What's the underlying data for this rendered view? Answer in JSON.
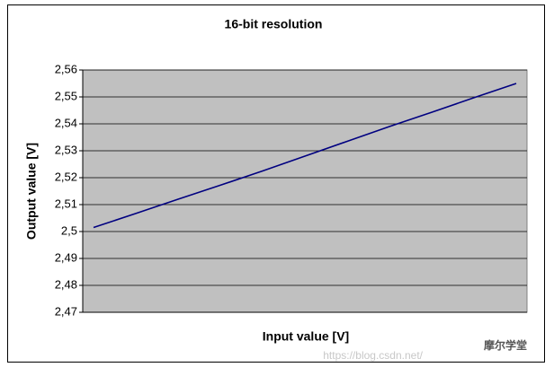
{
  "chart_data": {
    "type": "line",
    "title": "16-bit resolution",
    "x_label": "Input value [V]",
    "y_label": "Output value [V]",
    "categories": [
      null,
      null,
      null,
      null,
      null,
      null,
      null,
      null,
      null,
      null,
      null
    ],
    "series": [
      {
        "color": "#000080",
        "values": [
          2.5015,
          2.5067,
          2.512,
          2.5172,
          2.5225,
          2.528,
          2.5335,
          2.539,
          2.5443,
          2.5497,
          2.555
        ]
      }
    ],
    "ylim": [
      2.47,
      2.56
    ],
    "yticks": [
      {
        "value": 2.47,
        "label": "2,47"
      },
      {
        "value": 2.48,
        "label": "2,48"
      },
      {
        "value": 2.49,
        "label": "2,49"
      },
      {
        "value": 2.5,
        "label": "2,5"
      },
      {
        "value": 2.51,
        "label": "2,51"
      },
      {
        "value": 2.52,
        "label": "2,52"
      },
      {
        "value": 2.53,
        "label": "2,53"
      },
      {
        "value": 2.54,
        "label": "2,54"
      },
      {
        "value": 2.55,
        "label": "2,55"
      },
      {
        "value": 2.56,
        "label": "2,56"
      }
    ],
    "grid": true,
    "plot_background": "#c0c0c0"
  },
  "watermark": {
    "url": "https://blog.csdn.net/",
    "brand": "摩尔学堂"
  }
}
